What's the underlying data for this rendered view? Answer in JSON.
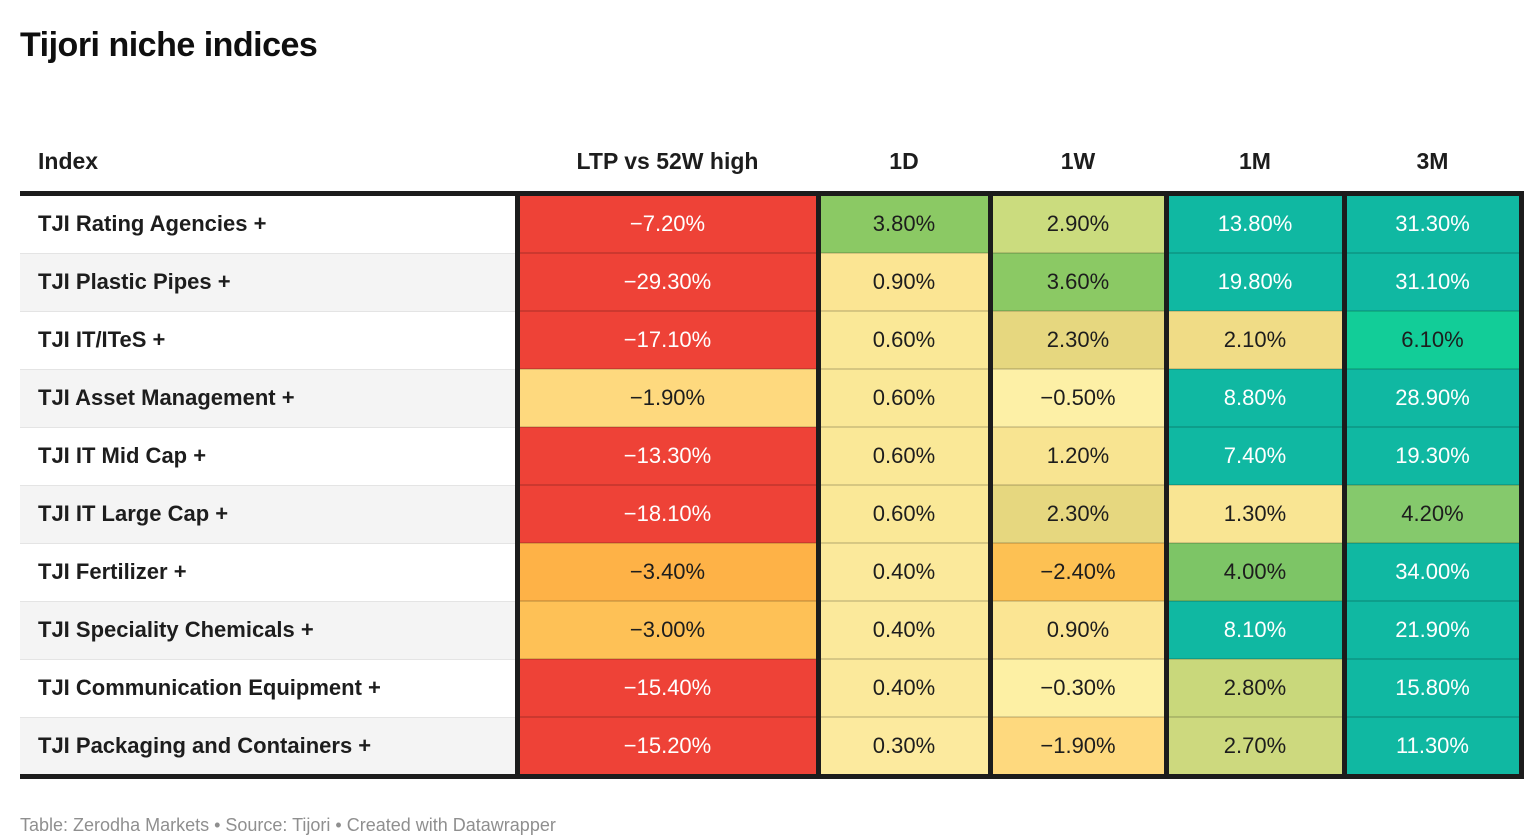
{
  "title": "Tijori niche indices",
  "footer": "Table: Zerodha Markets • Source: Tijori • Created with Datawrapper",
  "columns": {
    "index": "Index",
    "ltp": "LTP vs 52W high",
    "d1": "1D",
    "w1": "1W",
    "m1": "1M",
    "m3": "3M"
  },
  "palette": {
    "negative_red": "#ee4237",
    "positive_teal": "#10b8a2",
    "text_dark": "#1d1d1d",
    "text_light": "#ffffff",
    "border_black": "#1c1c1c",
    "zebra_gray": "#f4f4f4"
  },
  "rows": [
    {
      "index": "TJI Rating Agencies +",
      "cells": [
        {
          "text": "−7.20%",
          "bg": "#ee4237",
          "fg": "#ffffff"
        },
        {
          "text": "3.80%",
          "bg": "#8bc964",
          "fg": "#1d1d1d"
        },
        {
          "text": "2.90%",
          "bg": "#cbdc7e",
          "fg": "#1d1d1d"
        },
        {
          "text": "13.80%",
          "bg": "#10b8a2",
          "fg": "#ffffff"
        },
        {
          "text": "31.30%",
          "bg": "#10b8a2",
          "fg": "#ffffff"
        }
      ]
    },
    {
      "index": "TJI Plastic Pipes +",
      "cells": [
        {
          "text": "−29.30%",
          "bg": "#ee4237",
          "fg": "#ffffff"
        },
        {
          "text": "0.90%",
          "bg": "#fbe593",
          "fg": "#1d1d1d"
        },
        {
          "text": "3.60%",
          "bg": "#8bc964",
          "fg": "#1d1d1d"
        },
        {
          "text": "19.80%",
          "bg": "#10b8a2",
          "fg": "#ffffff"
        },
        {
          "text": "31.10%",
          "bg": "#10b8a2",
          "fg": "#ffffff"
        }
      ]
    },
    {
      "index": "TJI IT/ITeS +",
      "cells": [
        {
          "text": "−17.10%",
          "bg": "#ee4237",
          "fg": "#ffffff"
        },
        {
          "text": "0.60%",
          "bg": "#fae897",
          "fg": "#1d1d1d"
        },
        {
          "text": "2.30%",
          "bg": "#e6d77f",
          "fg": "#1d1d1d"
        },
        {
          "text": "2.10%",
          "bg": "#f0dc86",
          "fg": "#1d1d1d"
        },
        {
          "text": "6.10%",
          "bg": "#12cd98",
          "fg": "#1d1d1d"
        }
      ]
    },
    {
      "index": "TJI Asset Management +",
      "cells": [
        {
          "text": "−1.90%",
          "bg": "#fed97e",
          "fg": "#1d1d1d"
        },
        {
          "text": "0.60%",
          "bg": "#fae897",
          "fg": "#1d1d1d"
        },
        {
          "text": "−0.50%",
          "bg": "#fdf0a6",
          "fg": "#1d1d1d"
        },
        {
          "text": "8.80%",
          "bg": "#10b8a2",
          "fg": "#ffffff"
        },
        {
          "text": "28.90%",
          "bg": "#10b8a2",
          "fg": "#ffffff"
        }
      ]
    },
    {
      "index": "TJI IT Mid Cap +",
      "cells": [
        {
          "text": "−13.30%",
          "bg": "#ee4237",
          "fg": "#ffffff"
        },
        {
          "text": "0.60%",
          "bg": "#fae897",
          "fg": "#1d1d1d"
        },
        {
          "text": "1.20%",
          "bg": "#f8e491",
          "fg": "#1d1d1d"
        },
        {
          "text": "7.40%",
          "bg": "#10b8a2",
          "fg": "#ffffff"
        },
        {
          "text": "19.30%",
          "bg": "#10b8a2",
          "fg": "#ffffff"
        }
      ]
    },
    {
      "index": "TJI IT Large Cap +",
      "cells": [
        {
          "text": "−18.10%",
          "bg": "#ee4237",
          "fg": "#ffffff"
        },
        {
          "text": "0.60%",
          "bg": "#fae897",
          "fg": "#1d1d1d"
        },
        {
          "text": "2.30%",
          "bg": "#e6d77f",
          "fg": "#1d1d1d"
        },
        {
          "text": "1.30%",
          "bg": "#f9e593",
          "fg": "#1d1d1d"
        },
        {
          "text": "4.20%",
          "bg": "#85c96c",
          "fg": "#1d1d1d"
        }
      ]
    },
    {
      "index": "TJI Fertilizer +",
      "cells": [
        {
          "text": "−3.40%",
          "bg": "#feb247",
          "fg": "#1d1d1d"
        },
        {
          "text": "0.40%",
          "bg": "#fbe99b",
          "fg": "#1d1d1d"
        },
        {
          "text": "−2.40%",
          "bg": "#fdc153",
          "fg": "#1d1d1d"
        },
        {
          "text": "4.00%",
          "bg": "#7dc566",
          "fg": "#1d1d1d"
        },
        {
          "text": "34.00%",
          "bg": "#10b8a2",
          "fg": "#ffffff"
        }
      ]
    },
    {
      "index": "TJI Speciality Chemicals +",
      "cells": [
        {
          "text": "−3.00%",
          "bg": "#fec156",
          "fg": "#1d1d1d"
        },
        {
          "text": "0.40%",
          "bg": "#fbe99b",
          "fg": "#1d1d1d"
        },
        {
          "text": "0.90%",
          "bg": "#fbe593",
          "fg": "#1d1d1d"
        },
        {
          "text": "8.10%",
          "bg": "#10b8a2",
          "fg": "#ffffff"
        },
        {
          "text": "21.90%",
          "bg": "#10b8a2",
          "fg": "#ffffff"
        }
      ]
    },
    {
      "index": "TJI Communication Equipment +",
      "cells": [
        {
          "text": "−15.40%",
          "bg": "#ee4237",
          "fg": "#ffffff"
        },
        {
          "text": "0.40%",
          "bg": "#fbe99b",
          "fg": "#1d1d1d"
        },
        {
          "text": "−0.30%",
          "bg": "#fdf0a4",
          "fg": "#1d1d1d"
        },
        {
          "text": "2.80%",
          "bg": "#c9d87b",
          "fg": "#1d1d1d"
        },
        {
          "text": "15.80%",
          "bg": "#10b8a2",
          "fg": "#ffffff"
        }
      ]
    },
    {
      "index": "TJI Packaging and Containers +",
      "cells": [
        {
          "text": "−15.20%",
          "bg": "#ee4237",
          "fg": "#ffffff"
        },
        {
          "text": "0.30%",
          "bg": "#fcea9e",
          "fg": "#1d1d1d"
        },
        {
          "text": "−1.90%",
          "bg": "#fed97e",
          "fg": "#1d1d1d"
        },
        {
          "text": "2.70%",
          "bg": "#cdd97e",
          "fg": "#1d1d1d"
        },
        {
          "text": "11.30%",
          "bg": "#10b8a2",
          "fg": "#ffffff"
        }
      ]
    }
  ],
  "chart_data": {
    "type": "table",
    "title": "Tijori niche indices",
    "unit": "%",
    "row_labels": [
      "TJI Rating Agencies +",
      "TJI Plastic Pipes +",
      "TJI IT/ITeS +",
      "TJI Asset Management +",
      "TJI IT Mid Cap +",
      "TJI IT Large Cap +",
      "TJI Fertilizer +",
      "TJI Speciality Chemicals +",
      "TJI Communication Equipment +",
      "TJI Packaging and Containers +"
    ],
    "series": [
      {
        "name": "LTP vs 52W high",
        "values": [
          -7.2,
          -29.3,
          -17.1,
          -1.9,
          -13.3,
          -18.1,
          -3.4,
          -3.0,
          -15.4,
          -15.2
        ]
      },
      {
        "name": "1D",
        "values": [
          3.8,
          0.9,
          0.6,
          0.6,
          0.6,
          0.6,
          0.4,
          0.4,
          0.4,
          0.3
        ]
      },
      {
        "name": "1W",
        "values": [
          2.9,
          3.6,
          2.3,
          -0.5,
          1.2,
          2.3,
          -2.4,
          0.9,
          -0.3,
          -1.9
        ]
      },
      {
        "name": "1M",
        "values": [
          13.8,
          19.8,
          2.1,
          8.8,
          7.4,
          1.3,
          4.0,
          8.1,
          2.8,
          2.7
        ]
      },
      {
        "name": "3M",
        "values": [
          31.3,
          31.1,
          6.1,
          28.9,
          19.3,
          4.2,
          34.0,
          21.9,
          15.8,
          11.3
        ]
      }
    ],
    "layout": "heatmap table, diverging color scale red (negative) to yellow (near zero) to green/teal (positive)"
  }
}
